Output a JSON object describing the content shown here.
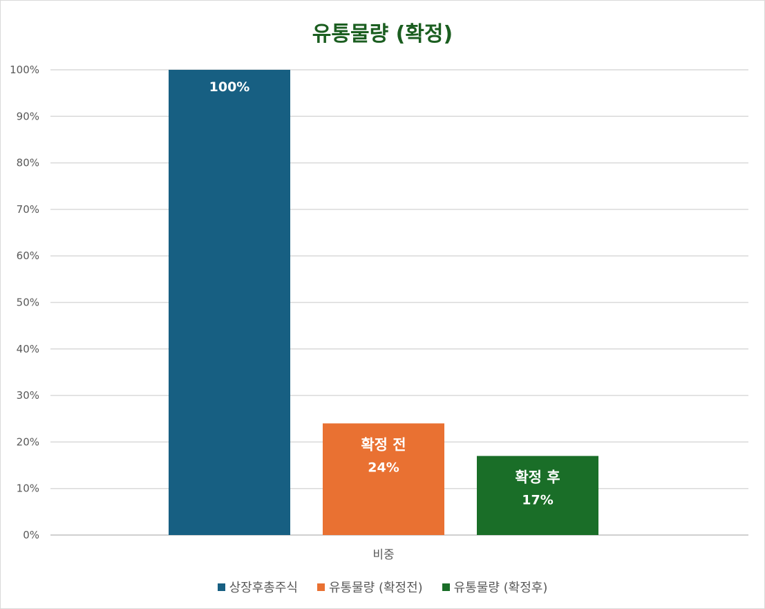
{
  "chart_data": {
    "type": "bar",
    "title": "유통물량 (확정)",
    "categories": [
      "비중"
    ],
    "ylim": [
      0,
      100
    ],
    "yticks": [
      0,
      10,
      20,
      30,
      40,
      50,
      60,
      70,
      80,
      90,
      100
    ],
    "ytick_format": "{v}%",
    "grid": true,
    "legend_position": "bottom",
    "series": [
      {
        "name": "상장후총주식",
        "values": [
          100
        ],
        "color": "#175f82",
        "label": "",
        "value_label": "100%"
      },
      {
        "name": "유통물량 (확정전)",
        "values": [
          24
        ],
        "color": "#e97132",
        "label": "확정 전",
        "value_label": "24%"
      },
      {
        "name": "유통물량 (확정후)",
        "values": [
          17
        ],
        "color": "#1a6e28",
        "label": "확정 후",
        "value_label": "17%"
      }
    ]
  }
}
